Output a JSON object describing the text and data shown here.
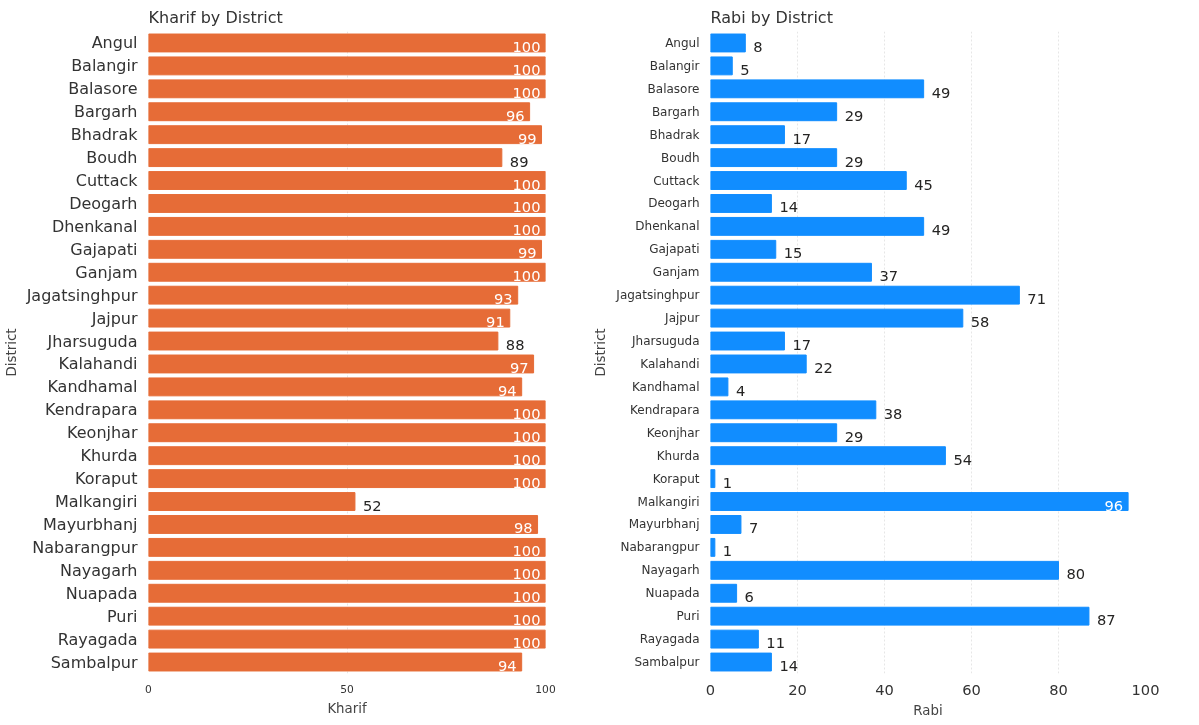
{
  "chart_data": [
    {
      "type": "bar",
      "orientation": "horizontal",
      "title": "Kharif by District",
      "xlabel": "Kharif",
      "ylabel": "District",
      "categories": [
        "Angul",
        "Balangir",
        "Balasore",
        "Bargarh",
        "Bhadrak",
        "Boudh",
        "Cuttack",
        "Deogarh",
        "Dhenkanal",
        "Gajapati",
        "Ganjam",
        "Jagatsinghpur",
        "Jajpur",
        "Jharsuguda",
        "Kalahandi",
        "Kandhamal",
        "Kendrapara",
        "Keonjhar",
        "Khurda",
        "Koraput",
        "Malkangiri",
        "Mayurbhanj",
        "Nabarangpur",
        "Nayagarh",
        "Nuapada",
        "Puri",
        "Rayagada",
        "Sambalpur"
      ],
      "values": [
        100,
        100,
        100,
        96,
        99,
        89,
        100,
        100,
        100,
        99,
        100,
        93,
        91,
        88,
        97,
        94,
        100,
        100,
        100,
        100,
        52,
        98,
        100,
        100,
        100,
        100,
        100,
        94
      ],
      "color": "#e66c37",
      "xlim": [
        0,
        100
      ],
      "xticks": [
        0,
        50,
        100
      ],
      "grid": "x",
      "data_labels": true
    },
    {
      "type": "bar",
      "orientation": "horizontal",
      "title": "Rabi by District",
      "xlabel": "Rabi",
      "ylabel": "District",
      "categories": [
        "Angul",
        "Balangir",
        "Balasore",
        "Bargarh",
        "Bhadrak",
        "Boudh",
        "Cuttack",
        "Deogarh",
        "Dhenkanal",
        "Gajapati",
        "Ganjam",
        "Jagatsinghpur",
        "Jajpur",
        "Jharsuguda",
        "Kalahandi",
        "Kandhamal",
        "Kendrapara",
        "Keonjhar",
        "Khurda",
        "Koraput",
        "Malkangiri",
        "Mayurbhanj",
        "Nabarangpur",
        "Nayagarh",
        "Nuapada",
        "Puri",
        "Rayagada",
        "Sambalpur"
      ],
      "values": [
        8,
        5,
        49,
        29,
        17,
        29,
        45,
        14,
        49,
        15,
        37,
        71,
        58,
        17,
        22,
        4,
        38,
        29,
        54,
        1,
        96,
        7,
        1,
        80,
        6,
        87,
        11,
        14
      ],
      "color": "#118dff",
      "xlim": [
        0,
        100
      ],
      "xticks": [
        0,
        20,
        40,
        60,
        80,
        100
      ],
      "grid": "x",
      "data_labels": true
    }
  ]
}
